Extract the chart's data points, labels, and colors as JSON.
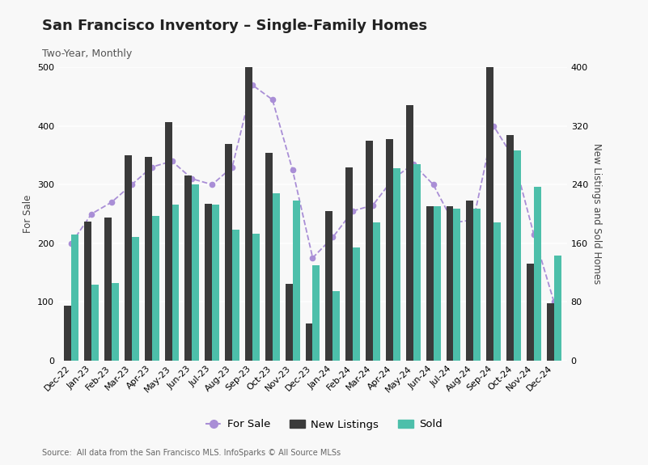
{
  "title": "San Francisco Inventory – Single-Family Homes",
  "subtitle": "Two-Year, Monthly",
  "source": "Source:  All data from the San Francisco MLS. InfoSparks © All Source MLSs",
  "categories": [
    "Dec-22",
    "Jan-23",
    "Feb-23",
    "Mar-23",
    "Apr-23",
    "May-23",
    "Jun-23",
    "Jul-23",
    "Aug-23",
    "Sep-23",
    "Oct-23",
    "Nov-23",
    "Dec-23",
    "Jan-24",
    "Feb-24",
    "Mar-24",
    "Apr-24",
    "May-24",
    "Jun-24",
    "Jul-24",
    "Aug-24",
    "Sep-24",
    "Oct-24",
    "Nov-24",
    "Dec-24"
  ],
  "for_sale": [
    200,
    250,
    270,
    300,
    330,
    340,
    310,
    300,
    330,
    470,
    445,
    325,
    175,
    210,
    255,
    265,
    310,
    335,
    300,
    235,
    240,
    400,
    345,
    215,
    100
  ],
  "new_listings": [
    75,
    190,
    195,
    280,
    278,
    325,
    252,
    214,
    295,
    435,
    283,
    105,
    50,
    204,
    263,
    300,
    302,
    348,
    210,
    210,
    218,
    462,
    308,
    132,
    78
  ],
  "sold": [
    172,
    103,
    106,
    168,
    197,
    213,
    240,
    213,
    178,
    173,
    228,
    218,
    130,
    95,
    154,
    188,
    262,
    268,
    210,
    207,
    207,
    188,
    287,
    237,
    143
  ],
  "for_sale_color": "#a98ed6",
  "new_listings_color": "#3a3a3a",
  "sold_color": "#4dbfaa",
  "background_color": "#f8f8f8",
  "left_ylim": [
    0,
    500
  ],
  "right_ylim": [
    0,
    400
  ],
  "left_yticks": [
    0,
    100,
    200,
    300,
    400,
    500
  ],
  "right_yticks": [
    0,
    80,
    160,
    240,
    320,
    400
  ],
  "ylabel_left": "For Sale",
  "ylabel_right": "New Listings and Sold Homes",
  "title_fontsize": 13,
  "subtitle_fontsize": 9,
  "axis_fontsize": 8.5,
  "tick_fontsize": 8,
  "bar_width": 0.36
}
